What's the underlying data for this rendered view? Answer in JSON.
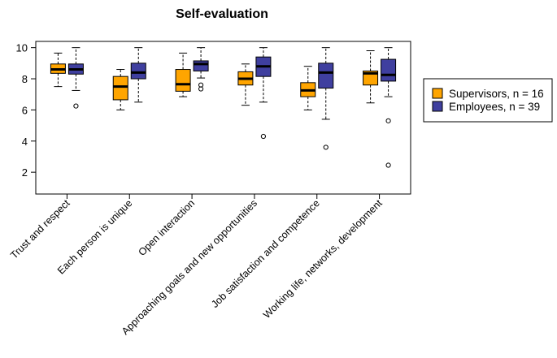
{
  "chart_data": {
    "type": "boxplot",
    "title": "Self-evaluation",
    "xlabel": "",
    "ylabel": "",
    "ylim": [
      0.6,
      10.4
    ],
    "yticks": [
      2,
      4,
      6,
      8,
      10
    ],
    "categories": [
      "Trust and respect",
      "Each person is unique",
      "Open interaction",
      "Approaching goals and new opportunities",
      "Job satisfaction and competence",
      "Working life, networks, development"
    ],
    "legend_position": "right",
    "series": [
      {
        "name": "Supervisors, n = 16",
        "color": "#FFA500",
        "boxes": [
          {
            "whisker_low": 7.5,
            "q1": 8.35,
            "median": 8.6,
            "q3": 8.95,
            "whisker_high": 9.65,
            "outliers": []
          },
          {
            "whisker_low": 6.0,
            "q1": 6.65,
            "median": 7.5,
            "q3": 8.15,
            "whisker_high": 8.6,
            "outliers": []
          },
          {
            "whisker_low": 6.85,
            "q1": 7.2,
            "median": 7.65,
            "q3": 8.6,
            "whisker_high": 9.65,
            "outliers": []
          },
          {
            "whisker_low": 6.3,
            "q1": 7.6,
            "median": 8.0,
            "q3": 8.45,
            "whisker_high": 8.95,
            "outliers": []
          },
          {
            "whisker_low": 6.0,
            "q1": 6.85,
            "median": 7.25,
            "q3": 7.75,
            "whisker_high": 8.8,
            "outliers": []
          },
          {
            "whisker_low": 6.45,
            "q1": 7.6,
            "median": 8.35,
            "q3": 8.5,
            "whisker_high": 9.8,
            "outliers": []
          }
        ]
      },
      {
        "name": "Employees, n = 39",
        "color": "#3F3F9F",
        "boxes": [
          {
            "whisker_low": 7.25,
            "q1": 8.3,
            "median": 8.6,
            "q3": 8.95,
            "whisker_high": 10.0,
            "outliers": [
              6.25
            ]
          },
          {
            "whisker_low": 6.5,
            "q1": 8.0,
            "median": 8.4,
            "q3": 9.0,
            "whisker_high": 10.0,
            "outliers": []
          },
          {
            "whisker_low": 8.05,
            "q1": 8.5,
            "median": 8.95,
            "q3": 9.15,
            "whisker_high": 10.0,
            "outliers": [
              7.6,
              7.35
            ]
          },
          {
            "whisker_low": 6.5,
            "q1": 8.15,
            "median": 8.8,
            "q3": 9.4,
            "whisker_high": 10.0,
            "outliers": [
              4.3
            ]
          },
          {
            "whisker_low": 5.4,
            "q1": 7.4,
            "median": 8.4,
            "q3": 9.0,
            "whisker_high": 10.0,
            "outliers": [
              3.6
            ]
          },
          {
            "whisker_low": 6.85,
            "q1": 7.85,
            "median": 8.25,
            "q3": 9.25,
            "whisker_high": 10.0,
            "outliers": [
              5.3,
              2.45
            ]
          }
        ]
      }
    ]
  }
}
